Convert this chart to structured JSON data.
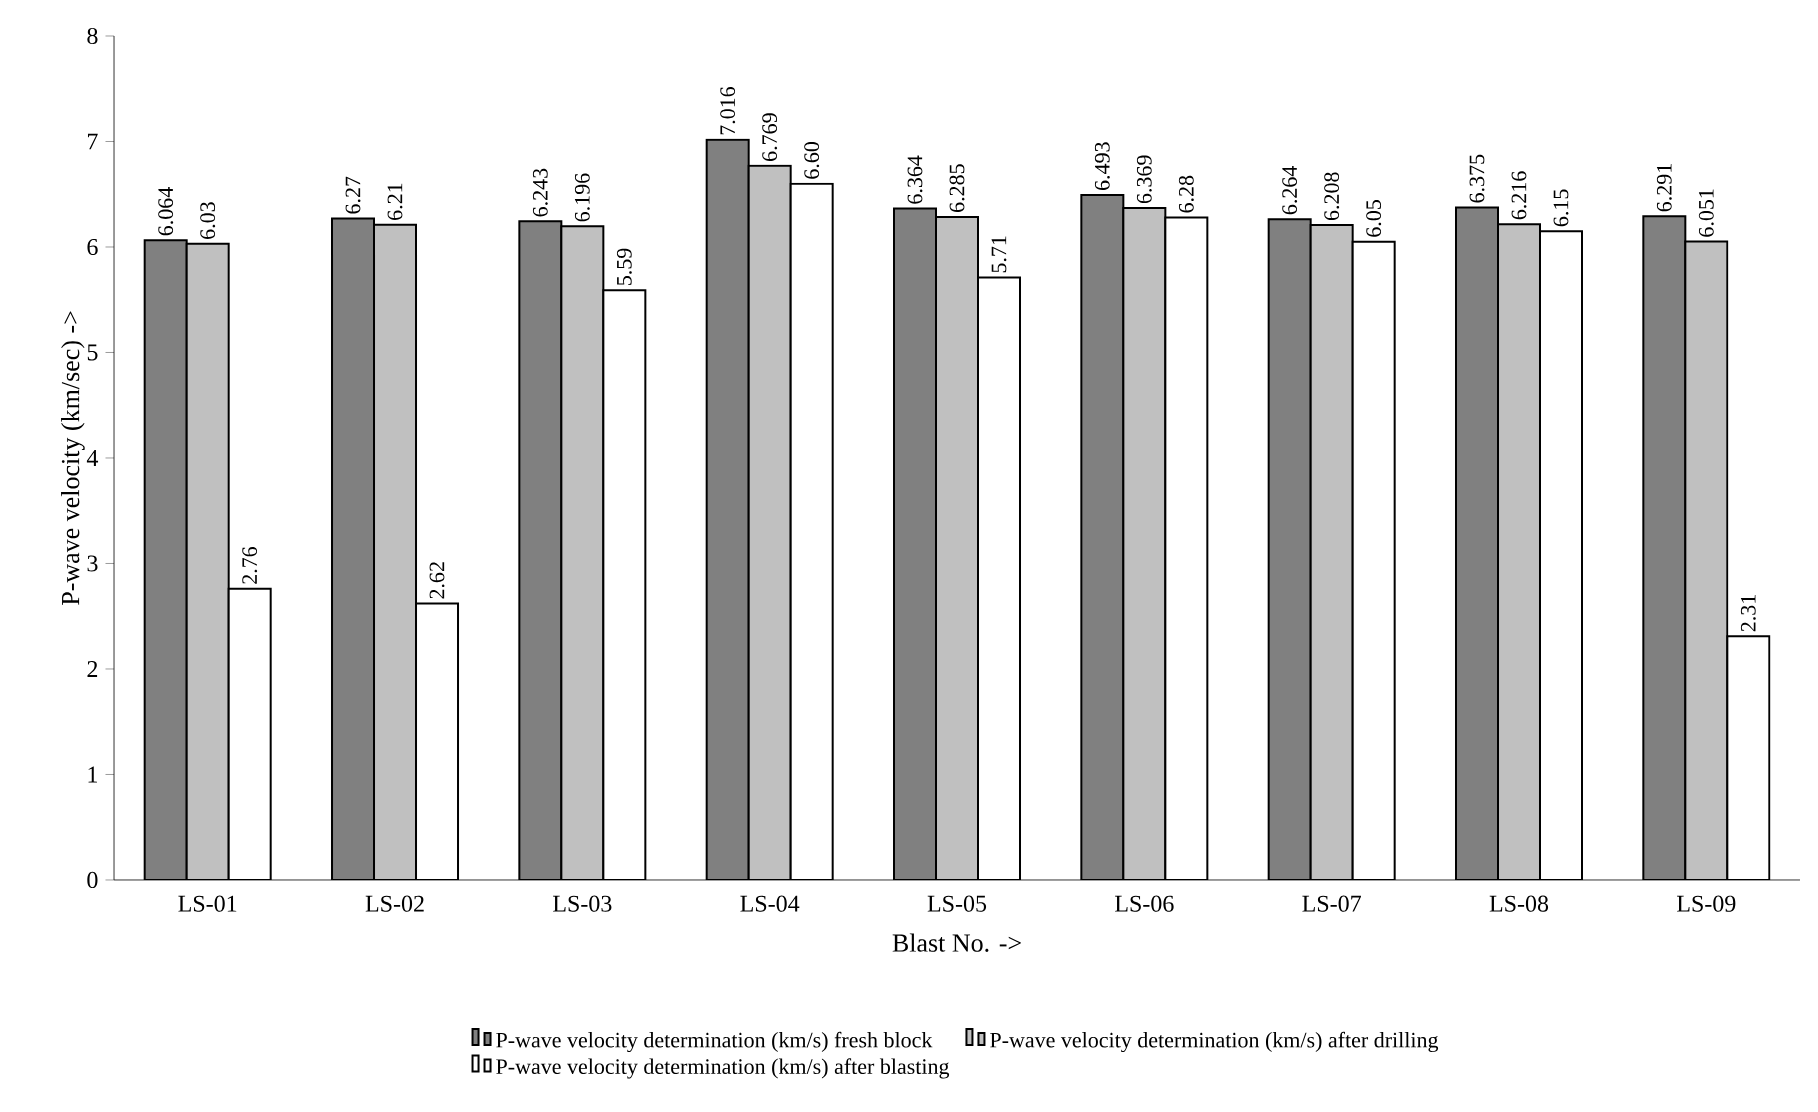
{
  "chart_data": {
    "type": "bar",
    "xlabel": "Blast No. ->",
    "ylabel": "P-wave velocity (km/sec) ->",
    "categories": [
      "LS-01",
      "LS-02",
      "LS-03",
      "LS-04",
      "LS-05",
      "LS-06",
      "LS-07",
      "LS-08",
      "LS-09"
    ],
    "series": [
      {
        "name": "P-wave velocity determination (km/s) fresh block",
        "color": "#808080",
        "values": [
          6.064,
          6.27,
          6.243,
          7.016,
          6.364,
          6.493,
          6.264,
          6.375,
          6.291
        ],
        "value_labels": [
          "6.064",
          "6.27",
          "6.243",
          "7.016",
          "6.364",
          "6.493",
          "6.264",
          "6.375",
          "6.291"
        ]
      },
      {
        "name": "P-wave velocity determination (km/s) after drilling",
        "color": "#c0c0c0",
        "values": [
          6.03,
          6.21,
          6.196,
          6.769,
          6.285,
          6.369,
          6.208,
          6.216,
          6.051
        ],
        "value_labels": [
          "6.03",
          "6.21",
          "6.196",
          "6.769",
          "6.285",
          "6.369",
          "6.208",
          "6.216",
          "6.051"
        ]
      },
      {
        "name": "P-wave velocity determination (km/s) after blasting",
        "color": "#ffffff",
        "values": [
          2.76,
          2.62,
          5.59,
          6.6,
          5.71,
          6.28,
          6.05,
          6.15,
          2.31
        ],
        "value_labels": [
          "2.76",
          "2.62",
          "5.59",
          "6.60",
          "5.71",
          "6.28",
          "6.05",
          "6.15",
          "2.31"
        ]
      }
    ],
    "ylim": [
      0,
      8
    ],
    "yticks": [
      0,
      1,
      2,
      3,
      4,
      5,
      6,
      7,
      8
    ],
    "grid": false,
    "legend": "bottom"
  }
}
